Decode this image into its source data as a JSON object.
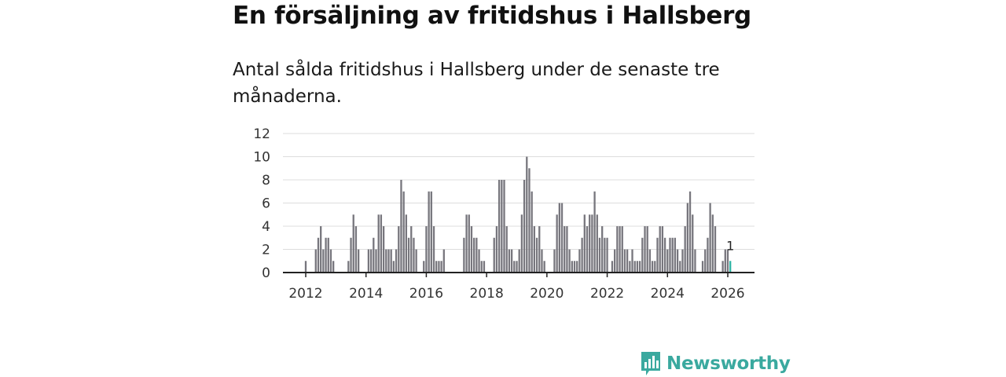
{
  "header": {
    "title": "En försäljning av fritidshus i Hallsberg",
    "subtitle": "Antal sålda fritidshus i Hallsberg under de senaste tre månaderna."
  },
  "brand": {
    "name": "Newsworthy",
    "color": "#3aa99f",
    "icon": "bar-chart-logo-icon"
  },
  "colors": {
    "bar": "#77767d",
    "highlight": "#2fb5a5",
    "grid": "#dddddd",
    "axis": "#222222"
  },
  "chart_data": {
    "type": "bar",
    "title": "En försäljning av fritidshus i Hallsberg",
    "subtitle": "Antal sålda fritidshus i Hallsberg under de senaste tre månaderna.",
    "xlabel": "",
    "ylabel": "",
    "ylim": [
      0,
      12
    ],
    "yticks": [
      0,
      2,
      4,
      6,
      8,
      10,
      12
    ],
    "xticks": [
      2012,
      2014,
      2016,
      2018,
      2020,
      2022,
      2024,
      2026
    ],
    "x_domain": [
      2011.5,
      2027.0
    ],
    "grid": true,
    "start": {
      "year": 2012,
      "month": 1
    },
    "values": [
      1,
      0,
      0,
      0,
      2,
      3,
      4,
      2,
      3,
      3,
      2,
      1,
      0,
      0,
      0,
      0,
      0,
      1,
      3,
      5,
      4,
      2,
      0,
      0,
      0,
      2,
      2,
      3,
      2,
      5,
      5,
      4,
      2,
      2,
      2,
      1,
      2,
      4,
      8,
      7,
      5,
      3,
      4,
      3,
      2,
      0,
      0,
      1,
      4,
      7,
      7,
      4,
      1,
      1,
      1,
      2,
      0,
      0,
      0,
      0,
      0,
      0,
      0,
      3,
      5,
      5,
      4,
      3,
      3,
      2,
      1,
      1,
      0,
      0,
      0,
      3,
      4,
      8,
      8,
      8,
      4,
      2,
      2,
      1,
      1,
      2,
      5,
      8,
      10,
      9,
      7,
      4,
      3,
      4,
      2,
      1,
      0,
      0,
      0,
      2,
      5,
      6,
      6,
      4,
      4,
      2,
      1,
      1,
      1,
      2,
      3,
      5,
      4,
      5,
      5,
      7,
      5,
      3,
      4,
      3,
      3,
      0,
      1,
      2,
      4,
      4,
      4,
      2,
      2,
      1,
      2,
      1,
      1,
      1,
      3,
      4,
      4,
      2,
      1,
      1,
      3,
      4,
      4,
      3,
      2,
      3,
      3,
      3,
      2,
      1,
      2,
      4,
      6,
      7,
      5,
      2,
      0,
      0,
      1,
      2,
      3,
      6,
      5,
      4,
      0,
      0,
      1,
      2,
      2,
      1
    ],
    "highlight_last": true,
    "annotation": "1"
  }
}
